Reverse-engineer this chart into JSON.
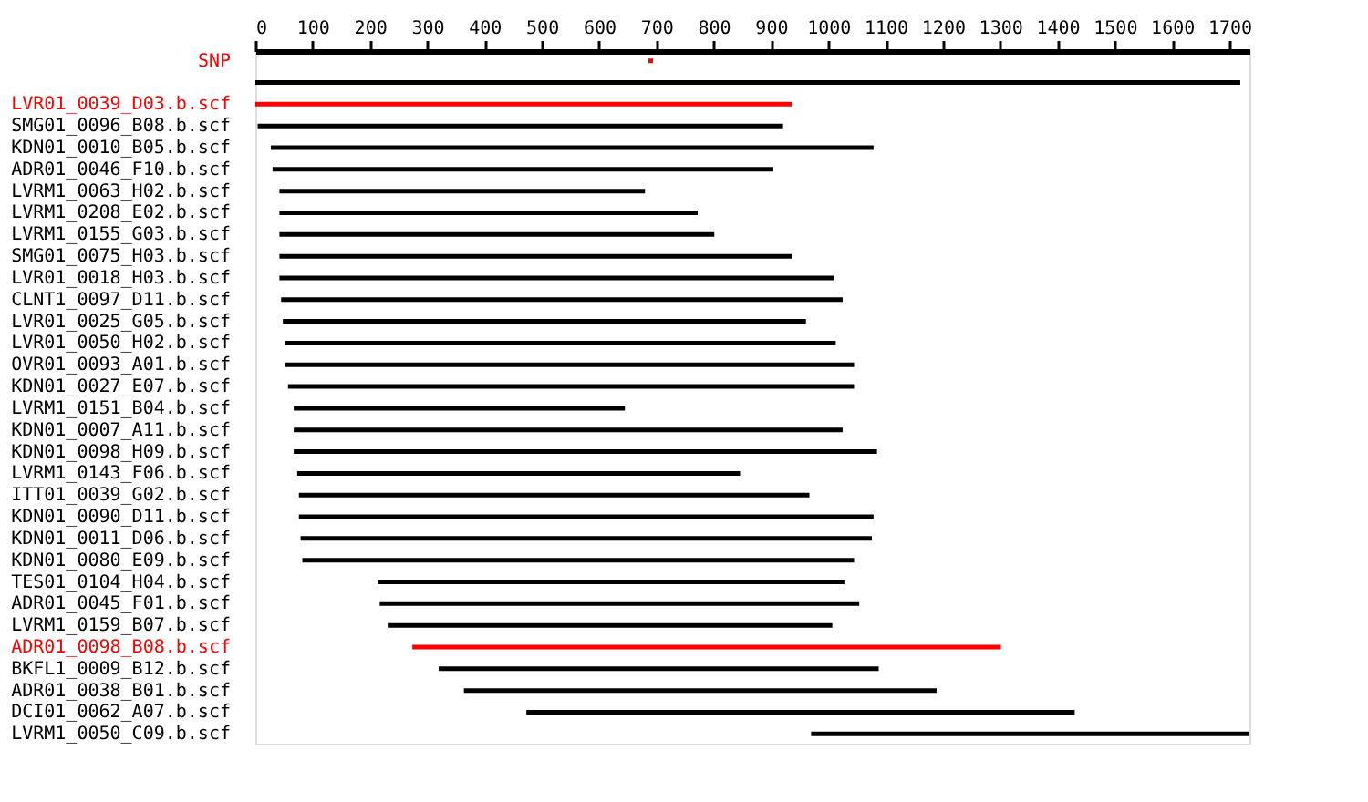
{
  "chart_data": {
    "type": "bar",
    "orientation": "horizontal",
    "categories": [
      "SNP",
      null,
      "LVR01_0039_D03.b.scf",
      "SMG01_0096_B08.b.scf",
      "KDN01_0010_B05.b.scf",
      "ADR01_0046_F10.b.scf",
      "LVRM1_0063_H02.b.scf",
      "LVRM1_0208_E02.b.scf",
      "LVRM1_0155_G03.b.scf",
      "SMG01_0075_H03.b.scf",
      "LVR01_0018_H03.b.scf",
      "CLNT1_0097_D11.b.scf",
      "LVR01_0025_G05.b.scf",
      "LVR01_0050_H02.b.scf",
      "OVR01_0093_A01.b.scf",
      "KDN01_0027_E07.b.scf",
      "LVRM1_0151_B04.b.scf",
      "KDN01_0007_A11.b.scf",
      "KDN01_0098_H09.b.scf",
      "LVRM1_0143_F06.b.scf",
      "ITT01_0039_G02.b.scf",
      "KDN01_0090_D11.b.scf",
      "KDN01_0011_D06.b.scf",
      "KDN01_0080_E09.b.scf",
      "TES01_0104_H04.b.scf",
      "ADR01_0045_F01.b.scf",
      "LVRM1_0159_B07.b.scf",
      "ADR01_0098_B08.b.scf",
      "BKFL1_0009_B12.b.scf",
      "ADR01_0038_B01.b.scf",
      "DCI01_0062_A07.b.scf",
      "LVRM1_0050_C09.b.scf"
    ],
    "base": [
      686,
      0,
      0,
      4,
      27,
      30,
      42,
      42,
      42,
      42,
      42,
      45,
      48,
      51,
      51,
      57,
      67,
      67,
      67,
      73,
      76,
      76,
      79,
      82,
      214,
      217,
      231,
      274,
      320,
      364,
      473,
      970
    ],
    "values": [
      8,
      1719,
      936,
      917,
      1052,
      874,
      638,
      730,
      759,
      894,
      968,
      980,
      913,
      962,
      994,
      988,
      578,
      958,
      1018,
      773,
      891,
      1003,
      997,
      963,
      814,
      837,
      776,
      1027,
      768,
      825,
      957,
      764
    ],
    "colors": [
      "#ff0000",
      "#000000",
      "#ff0000",
      "#000000",
      "#000000",
      "#000000",
      "#000000",
      "#000000",
      "#000000",
      "#000000",
      "#000000",
      "#000000",
      "#000000",
      "#000000",
      "#000000",
      "#000000",
      "#000000",
      "#000000",
      "#000000",
      "#000000",
      "#000000",
      "#000000",
      "#000000",
      "#000000",
      "#000000",
      "#000000",
      "#000000",
      "#ff0000",
      "#000000",
      "#000000",
      "#000000",
      "#000000"
    ],
    "xlim": [
      0,
      1735
    ],
    "xticks": [
      0,
      100,
      200,
      300,
      400,
      500,
      600,
      700,
      800,
      900,
      1000,
      1100,
      1200,
      1300,
      1400,
      1500,
      1600,
      1700
    ],
    "grid": false
  }
}
